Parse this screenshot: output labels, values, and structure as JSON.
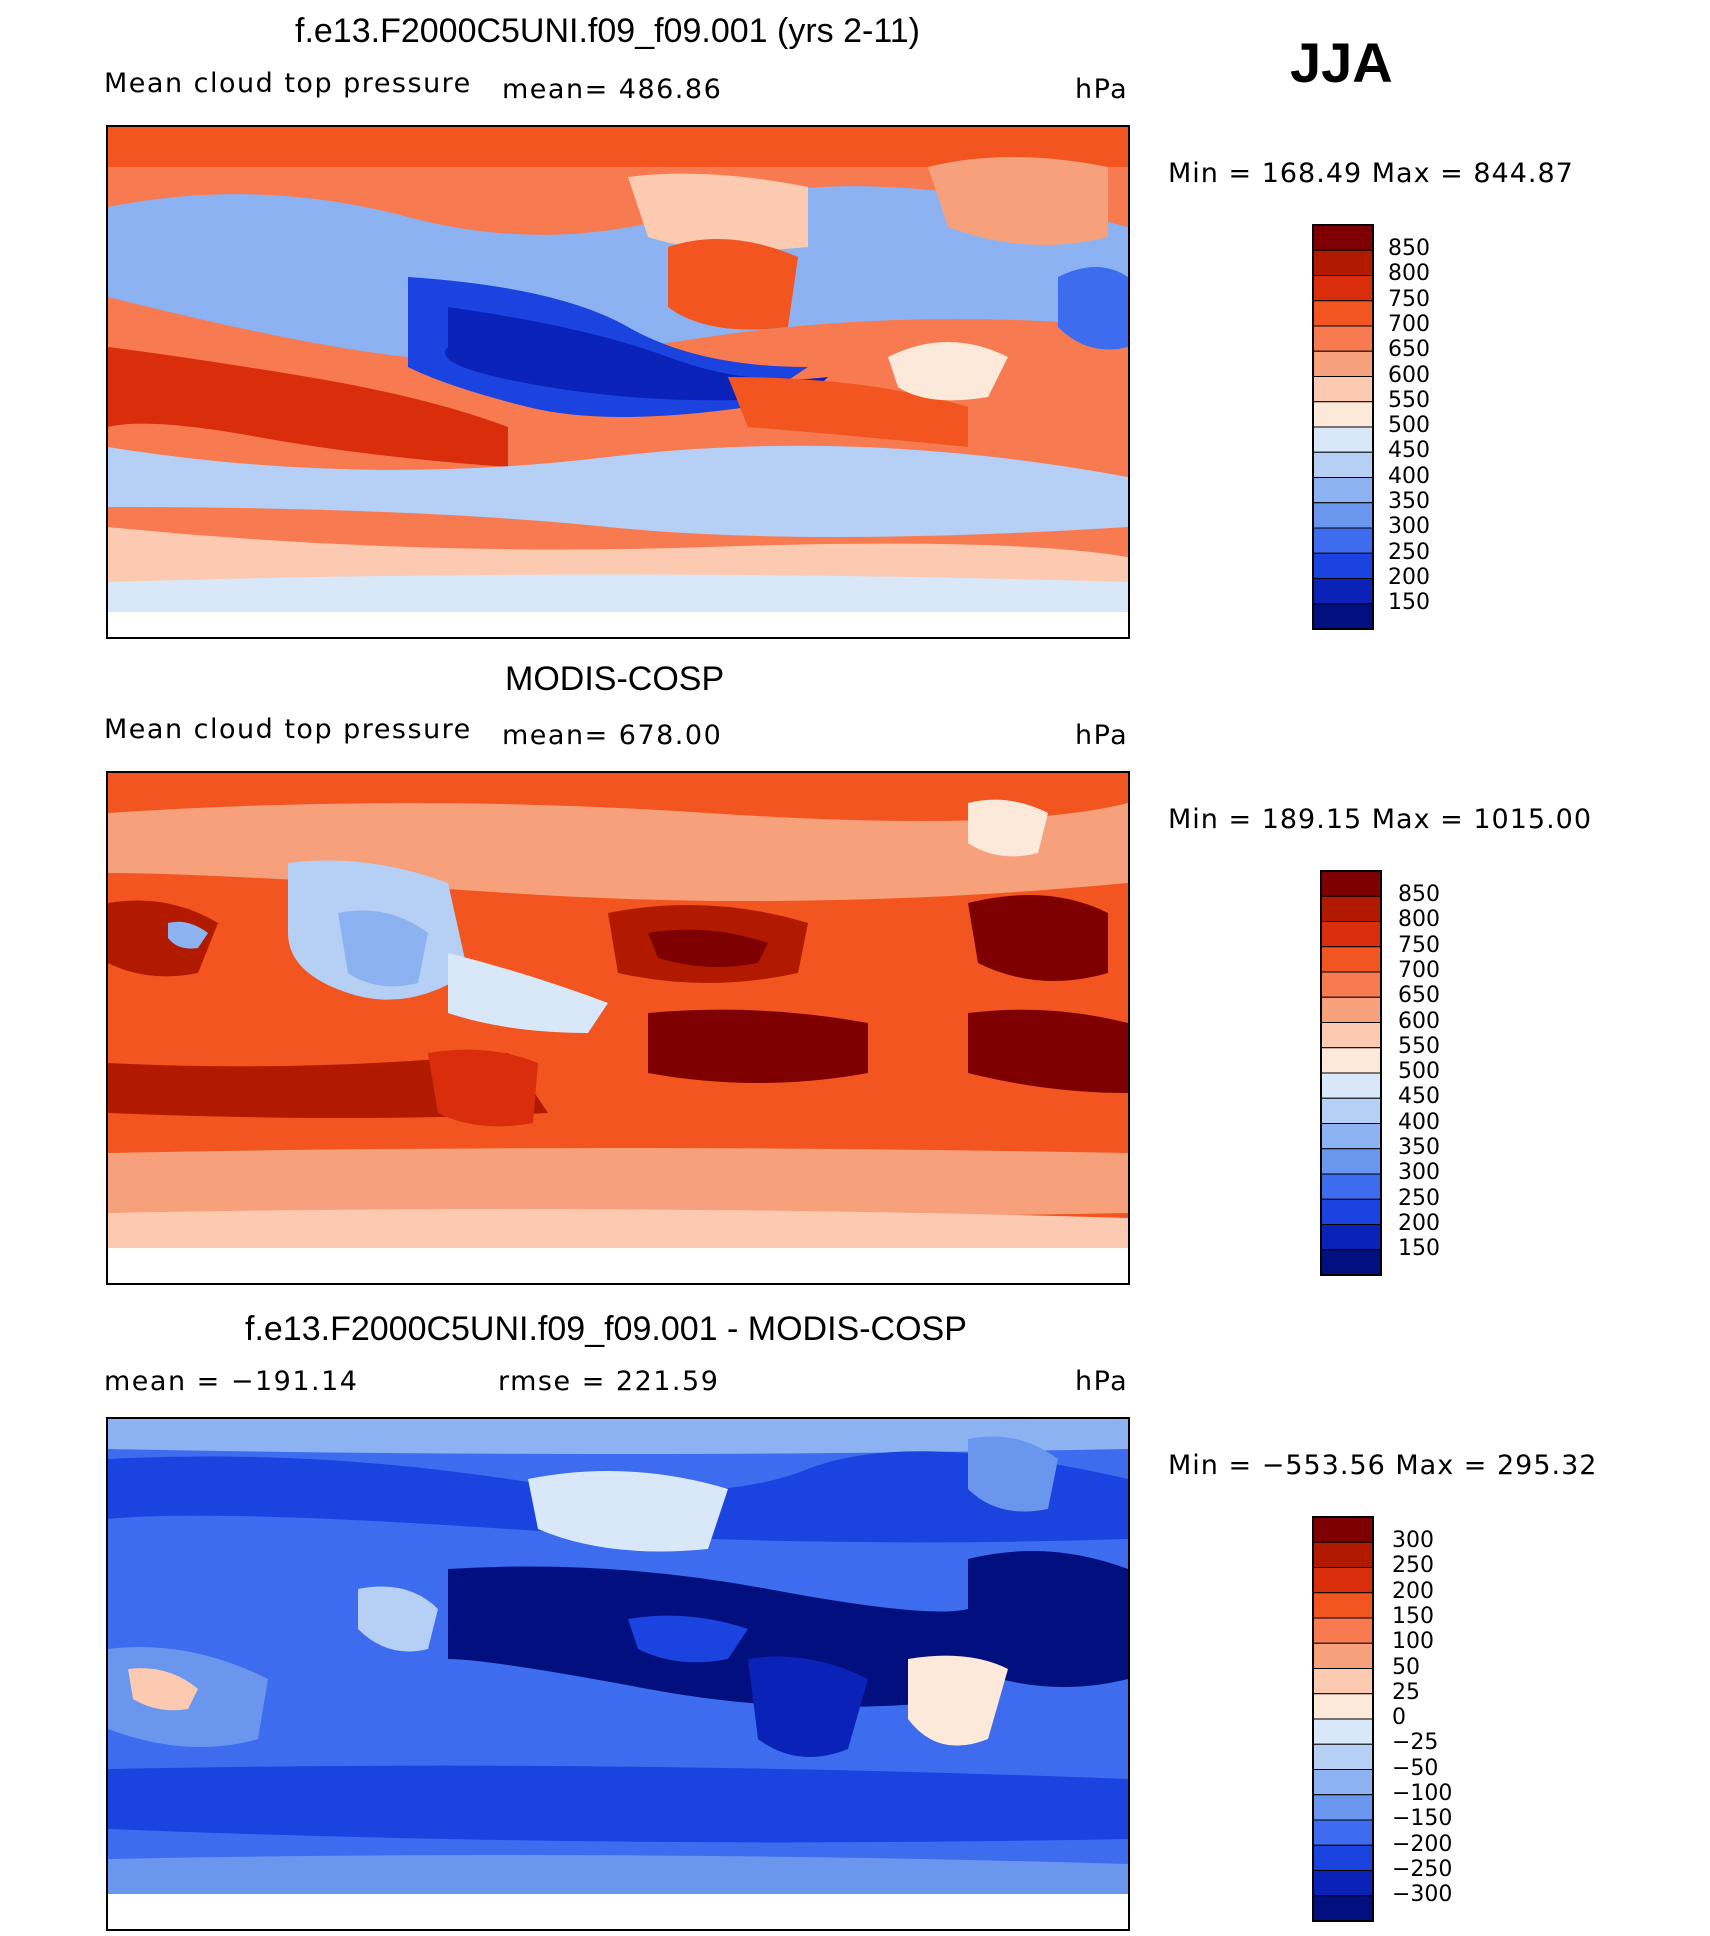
{
  "season": "JJA",
  "panels": [
    {
      "title": "f.e13.F2000C5UNI.f09_f09.001 (yrs 2-11)",
      "left_label": "Mean cloud top pressure",
      "mid_label": "mean=  486.86",
      "units": "hPa",
      "minmax": "Min  =  168.49  Max  =  844.87",
      "colorbar_ticks": [
        "850",
        "800",
        "750",
        "700",
        "650",
        "600",
        "550",
        "500",
        "450",
        "400",
        "350",
        "300",
        "250",
        "200",
        "150"
      ]
    },
    {
      "title": "MODIS-COSP",
      "left_label": "Mean cloud top pressure",
      "mid_label": "mean=  678.00",
      "units": "hPa",
      "minmax": "Min  =  189.15  Max  =  1015.00",
      "colorbar_ticks": [
        "850",
        "800",
        "750",
        "700",
        "650",
        "600",
        "550",
        "500",
        "450",
        "400",
        "350",
        "300",
        "250",
        "200",
        "150"
      ]
    },
    {
      "title": "f.e13.F2000C5UNI.f09_f09.001 - MODIS-COSP",
      "left_label": "mean  =  −191.14",
      "mid_label": "rmse  =  221.59",
      "units": "hPa",
      "minmax": "Min  =  −553.56  Max  =  295.32",
      "colorbar_ticks": [
        "300",
        "250",
        "200",
        "150",
        "100",
        "50",
        "25",
        "0",
        "−25",
        "−50",
        "−100",
        "−150",
        "−200",
        "−250",
        "−300"
      ]
    }
  ],
  "colors": {
    "scale": [
      "#7f0000",
      "#b21a00",
      "#d92d0c",
      "#f2551f",
      "#f77a50",
      "#f7a07c",
      "#fccab0",
      "#fde9da",
      "#d9e8f8",
      "#b5cff5",
      "#8cb2f2",
      "#6a96ee",
      "#3d6cef",
      "#1a43e0",
      "#0a22b8",
      "#02107f"
    ]
  },
  "chart_data": [
    {
      "type": "heatmap",
      "title": "f.e13.F2000C5UNI.f09_f09.001 (yrs 2-11)",
      "variable": "Mean cloud top pressure",
      "units": "hPa",
      "mean": 486.86,
      "min": 168.49,
      "max": 844.87,
      "contour_levels": [
        150,
        200,
        250,
        300,
        350,
        400,
        450,
        500,
        550,
        600,
        650,
        700,
        750,
        800,
        850
      ]
    },
    {
      "type": "heatmap",
      "title": "MODIS-COSP",
      "variable": "Mean cloud top pressure",
      "units": "hPa",
      "mean": 678.0,
      "min": 189.15,
      "max": 1015.0,
      "contour_levels": [
        150,
        200,
        250,
        300,
        350,
        400,
        450,
        500,
        550,
        600,
        650,
        700,
        750,
        800,
        850
      ]
    },
    {
      "type": "heatmap",
      "title": "f.e13.F2000C5UNI.f09_f09.001 - MODIS-COSP",
      "units": "hPa",
      "mean": -191.14,
      "rmse": 221.59,
      "min": -553.56,
      "max": 295.32,
      "contour_levels": [
        -300,
        -250,
        -200,
        -150,
        -100,
        -50,
        -25,
        0,
        25,
        50,
        100,
        150,
        200,
        250,
        300
      ]
    }
  ]
}
